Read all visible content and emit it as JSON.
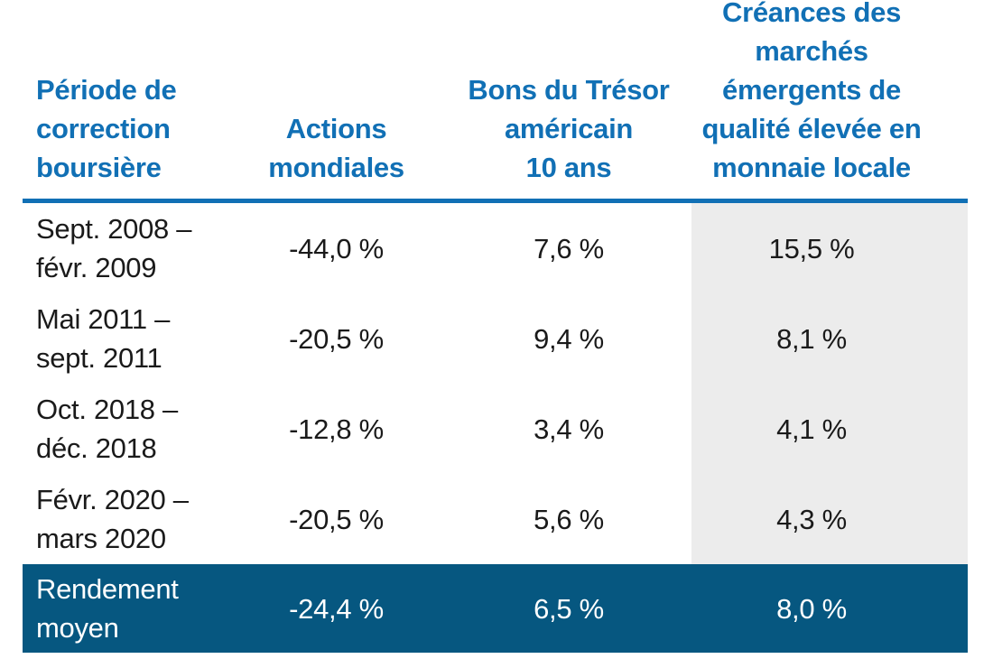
{
  "chart_data": {
    "type": "table",
    "columns": [
      "Période de correction boursière",
      "Actions mondiales",
      "Bons du Trésor américain 10 ans",
      "Créances des marchés émergents de qualité élevée en monnaie locale"
    ],
    "rows": [
      [
        "Sept. 2008 – févr. 2009",
        "-44,0 %",
        "7,6 %",
        "15,5 %"
      ],
      [
        "Mai 2011 – sept. 2011",
        "-20,5 %",
        "9,4 %",
        "8,1 %"
      ],
      [
        "Oct. 2018 – déc. 2018",
        "-12,8 %",
        "3,4 %",
        "4,1 %"
      ],
      [
        "Févr. 2020 – mars 2020",
        "-20,5 %",
        "5,6 %",
        "4,3 %"
      ],
      [
        "Rendement moyen",
        "-24,4 %",
        "6,5 %",
        "8,0 %"
      ]
    ],
    "highlight_column": "Créances des marchés émergents de qualité élevée en monnaie locale",
    "highlight_row": "Rendement moyen",
    "title": ""
  },
  "table": {
    "headers": {
      "period": "Période de\ncorrection\nboursière",
      "equities": "Actions\nmondiales",
      "treasury": "Bons du Trésor\naméricain\n10 ans",
      "em_debt": "Créances des\nmarchés\némergents de\nqualité élevée en\nmonnaie locale"
    },
    "rows": [
      {
        "period": "Sept. 2008 –\nfévr. 2009",
        "equities": "-44,0 %",
        "treasury": "7,6 %",
        "em_debt": "15,5 %"
      },
      {
        "period": "Mai 2011 –\nsept. 2011",
        "equities": "-20,5 %",
        "treasury": "9,4 %",
        "em_debt": "8,1 %"
      },
      {
        "period": "Oct. 2018 –\ndéc. 2018",
        "equities": "-12,8 %",
        "treasury": "3,4 %",
        "em_debt": "4,1 %"
      },
      {
        "period": "Févr. 2020 –\nmars 2020",
        "equities": "-20,5 %",
        "treasury": "5,6 %",
        "em_debt": "4,3 %"
      }
    ],
    "footer": {
      "period": "Rendement\nmoyen",
      "equities": "-24,4 %",
      "treasury": "6,5 %",
      "em_debt": "8,0 %"
    }
  },
  "colors": {
    "header_blue": "#1170B5",
    "footer_bg": "#065780",
    "col_bg": "#ECECEC",
    "body_text": "#1A1A1A",
    "footer_text": "#FFFFFF"
  }
}
